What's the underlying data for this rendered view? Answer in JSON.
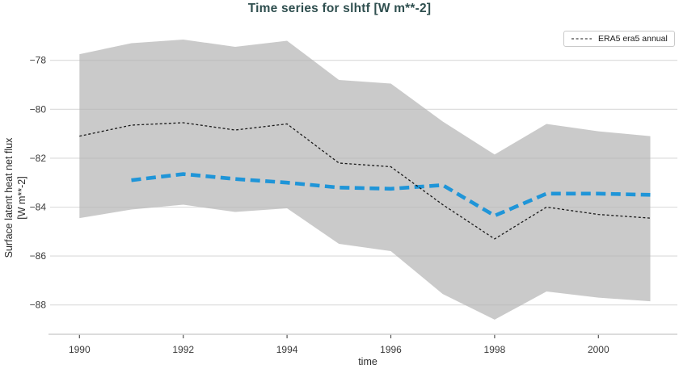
{
  "title": "Time series for slhtf [W m**-2]",
  "legend": {
    "position": "upper right",
    "entries": [
      {
        "label": "ERA5 era5 annual",
        "style": "dashed-thin",
        "color": "#1a1a1a"
      }
    ]
  },
  "axes": {
    "xlabel": "time",
    "ylabel_line1": "Surface latent heat net flux",
    "ylabel_line2": "[W m**-2]"
  },
  "colors": {
    "title": "#2f4f4f",
    "band_fill": "#b3b3b3",
    "band_rendered": "#cacaca",
    "era5_line": "#1a1a1a",
    "blue_line": "#1f95d8",
    "gridline": "#dadada",
    "spine": "#d0d0d0",
    "tick_text": "#3a3a3a",
    "background": "#ffffff"
  },
  "chart_data": {
    "type": "line",
    "title": "Time series for slhtf [W m**-2]",
    "xlabel": "time",
    "ylabel": "Surface latent heat net flux [W m**-2]",
    "grid": "horizontal-only",
    "legend_position": "upper right",
    "x_ticks": [
      1990,
      1992,
      1994,
      1996,
      1998,
      2000
    ],
    "y_ticks": [
      -78,
      -80,
      -82,
      -84,
      -86,
      -88
    ],
    "xlim": [
      1989.4,
      2001.55
    ],
    "ylim": [
      -89.2,
      -76.6
    ],
    "series": [
      {
        "name": "ERA5 era5 annual",
        "in_legend": true,
        "style": "dashed-thin",
        "color": "#1a1a1a",
        "x": [
          1990,
          1991,
          1992,
          1993,
          1994,
          1995,
          1996,
          1997,
          1998,
          1999,
          2000,
          2001
        ],
        "y": [
          -81.1,
          -80.65,
          -80.55,
          -80.85,
          -80.6,
          -82.2,
          -82.35,
          -83.9,
          -85.3,
          -84.0,
          -84.3,
          -84.45
        ]
      },
      {
        "name": "unlabeled annual mean (thick blue dashed)",
        "in_legend": false,
        "style": "dashed-thick",
        "color": "#1f95d8",
        "x": [
          1991,
          1992,
          1993,
          1994,
          1995,
          1996,
          1997,
          1998,
          1999,
          2000,
          2001
        ],
        "y": [
          -82.9,
          -82.65,
          -82.85,
          -83.0,
          -83.2,
          -83.25,
          -83.1,
          -84.35,
          -83.45,
          -83.45,
          -83.5
        ]
      }
    ],
    "band": {
      "name": "uncertainty range (shaded)",
      "color": "#cacaca",
      "x": [
        1990,
        1991,
        1992,
        1993,
        1994,
        1995,
        1996,
        1997,
        1998,
        1999,
        2000,
        2001
      ],
      "top": [
        -77.75,
        -77.3,
        -77.15,
        -77.45,
        -77.2,
        -78.8,
        -78.95,
        -80.5,
        -81.85,
        -80.6,
        -80.9,
        -81.1
      ],
      "bottom": [
        -84.45,
        -84.1,
        -83.9,
        -84.2,
        -84.05,
        -85.5,
        -85.8,
        -87.55,
        -88.6,
        -87.45,
        -87.7,
        -87.85
      ]
    }
  }
}
